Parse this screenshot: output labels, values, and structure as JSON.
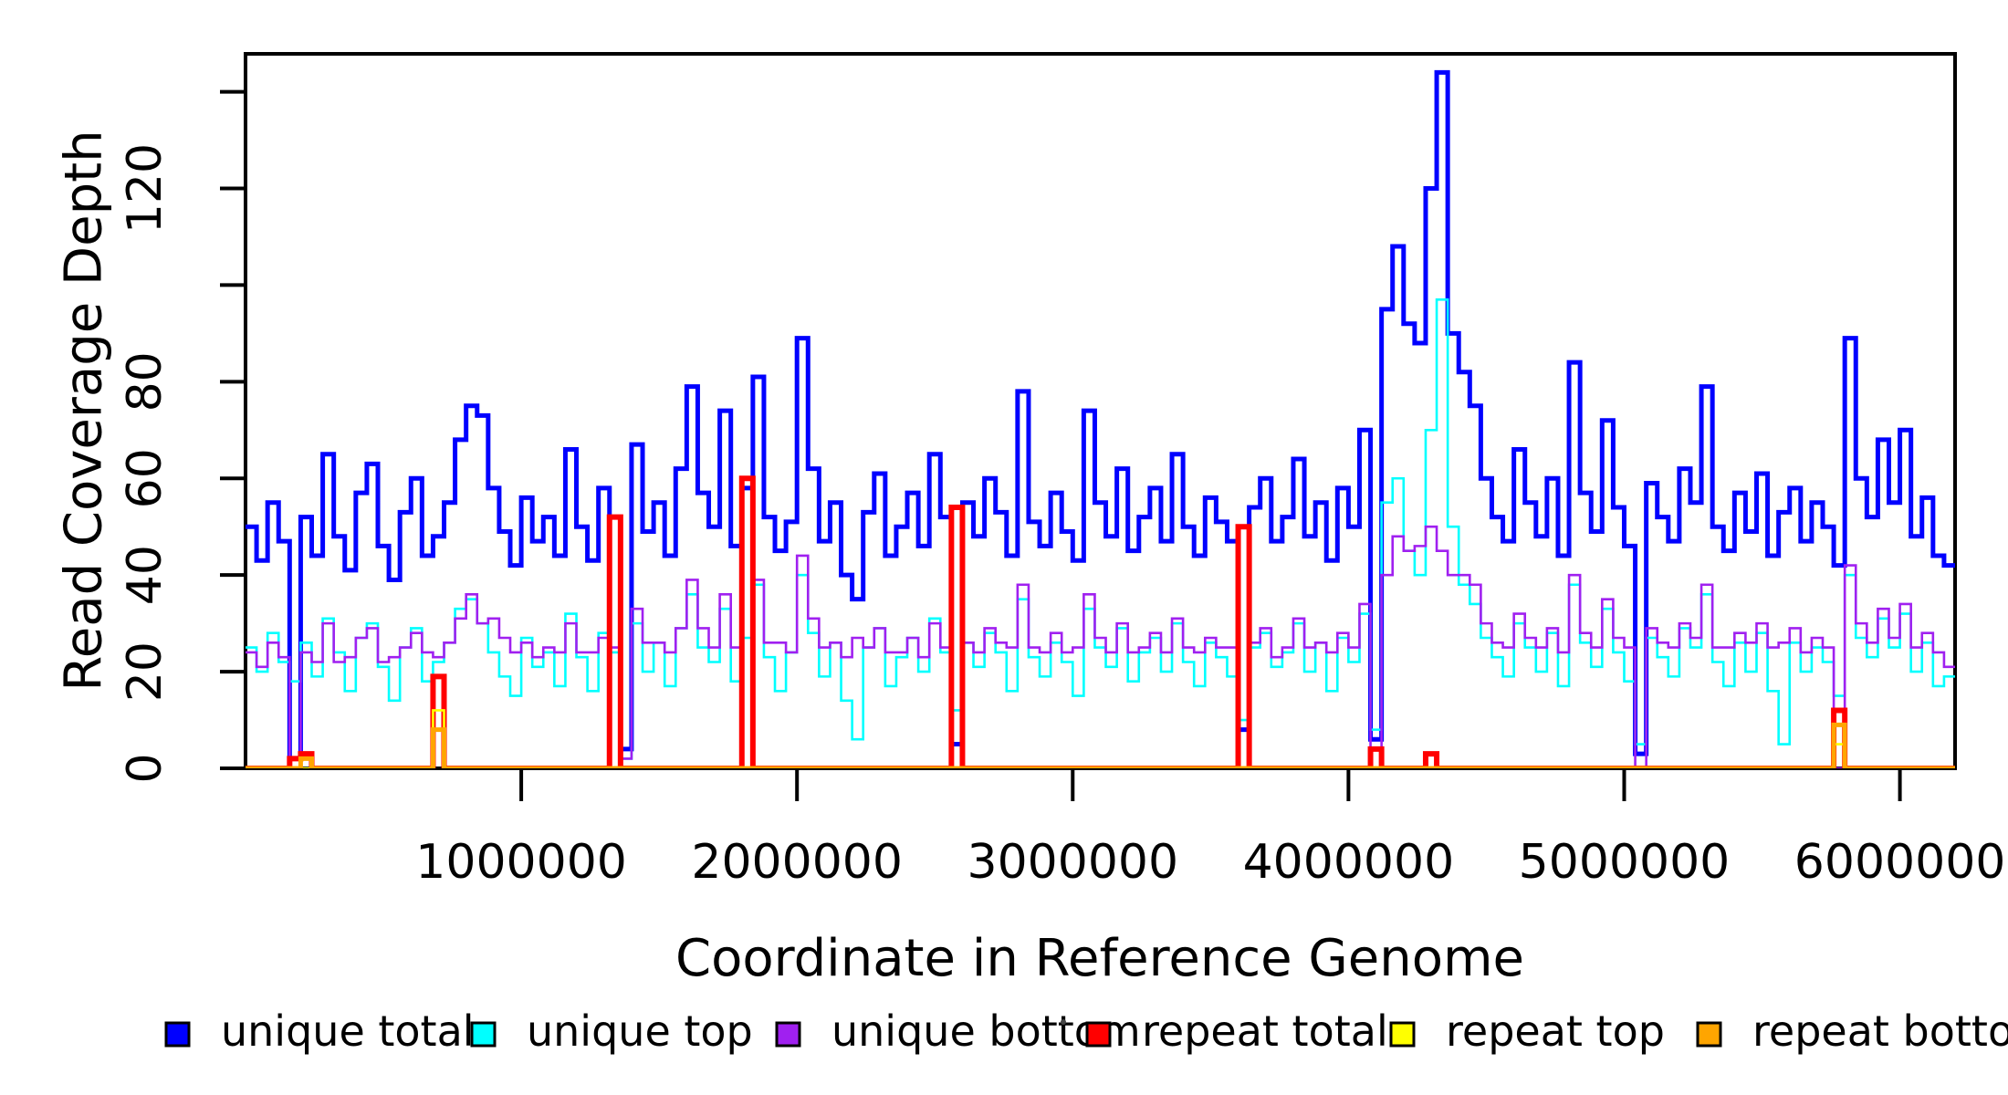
{
  "figure": {
    "background": "#ffffff"
  },
  "x_axis": {
    "title": "Coordinate in Reference Genome",
    "ticks": [
      {
        "value": 1000000,
        "label": "1000000"
      },
      {
        "value": 2000000,
        "label": "2000000"
      },
      {
        "value": 3000000,
        "label": "3000000"
      },
      {
        "value": 4000000,
        "label": "4000000"
      },
      {
        "value": 5000000,
        "label": "5000000"
      },
      {
        "value": 6000000,
        "label": "6000000"
      }
    ]
  },
  "y_axis": {
    "title": "Read Coverage Depth",
    "ticks": [
      {
        "value": 0,
        "label": "0"
      },
      {
        "value": 20,
        "label": "20"
      },
      {
        "value": 40,
        "label": "40"
      },
      {
        "value": 60,
        "label": "60"
      },
      {
        "value": 80,
        "label": "80"
      },
      {
        "value": 100,
        "label": ""
      },
      {
        "value": 120,
        "label": "120"
      },
      {
        "value": 140,
        "label": ""
      }
    ]
  },
  "chart_data": {
    "type": "line",
    "subtype": "step",
    "title": "",
    "xlabel": "Coordinate in Reference Genome",
    "ylabel": "Read Coverage Depth",
    "xlim": [
      0,
      6200000
    ],
    "ylim": [
      0,
      148
    ],
    "grid": false,
    "legend_position": "bottom",
    "bin_size": 40000,
    "series": [
      {
        "name": "unique total",
        "color": "#0000FF",
        "line_width": 5,
        "values": [
          50,
          43,
          55,
          47,
          2,
          52,
          44,
          65,
          48,
          41,
          57,
          63,
          46,
          39,
          53,
          60,
          44,
          48,
          55,
          68,
          75,
          73,
          58,
          49,
          42,
          56,
          47,
          52,
          44,
          66,
          50,
          43,
          58,
          52,
          4,
          67,
          49,
          55,
          44,
          62,
          79,
          57,
          50,
          74,
          46,
          58,
          81,
          52,
          45,
          51,
          89,
          62,
          47,
          55,
          40,
          35,
          53,
          61,
          44,
          50,
          57,
          46,
          65,
          52,
          5,
          55,
          48,
          60,
          53,
          44,
          78,
          51,
          46,
          57,
          49,
          43,
          74,
          55,
          48,
          62,
          45,
          52,
          58,
          47,
          65,
          50,
          44,
          56,
          51,
          47,
          8,
          54,
          60,
          47,
          52,
          64,
          48,
          55,
          43,
          58,
          50,
          70,
          6,
          95,
          108,
          92,
          88,
          120,
          144,
          90,
          82,
          75,
          60,
          52,
          47,
          66,
          55,
          48,
          60,
          44,
          84,
          57,
          49,
          72,
          54,
          46,
          3,
          59,
          52,
          47,
          62,
          55,
          79,
          50,
          45,
          57,
          49,
          61,
          44,
          53,
          58,
          47,
          55,
          50,
          42,
          89,
          60,
          52,
          68,
          55,
          70,
          48,
          56,
          44,
          42
        ]
      },
      {
        "name": "unique top",
        "color": "#00FFFF",
        "line_width": 2.6,
        "values": [
          25,
          20,
          28,
          22,
          18,
          26,
          19,
          31,
          24,
          16,
          27,
          30,
          21,
          14,
          25,
          29,
          18,
          22,
          26,
          33,
          35,
          30,
          24,
          19,
          15,
          27,
          21,
          24,
          17,
          32,
          23,
          16,
          28,
          24,
          2,
          30,
          20,
          26,
          17,
          29,
          36,
          25,
          22,
          33,
          18,
          27,
          38,
          23,
          16,
          24,
          40,
          28,
          19,
          26,
          14,
          6,
          25,
          29,
          17,
          23,
          27,
          20,
          31,
          24,
          12,
          26,
          21,
          28,
          24,
          16,
          35,
          23,
          19,
          26,
          22,
          15,
          33,
          25,
          21,
          29,
          18,
          24,
          27,
          20,
          30,
          22,
          17,
          26,
          23,
          19,
          10,
          25,
          28,
          21,
          24,
          30,
          20,
          26,
          16,
          27,
          22,
          32,
          8,
          55,
          60,
          45,
          40,
          70,
          97,
          50,
          38,
          34,
          27,
          23,
          19,
          30,
          25,
          20,
          28,
          17,
          38,
          26,
          21,
          33,
          24,
          18,
          5,
          27,
          23,
          19,
          29,
          25,
          36,
          22,
          17,
          26,
          20,
          28,
          16,
          5,
          26,
          20,
          25,
          22,
          15,
          40,
          27,
          23,
          31,
          25,
          32,
          20,
          26,
          17,
          19
        ]
      },
      {
        "name": "unique bottom",
        "color": "#A020F0",
        "line_width": 2.6,
        "values": [
          24,
          21,
          26,
          23,
          0,
          24,
          22,
          30,
          22,
          23,
          27,
          29,
          22,
          23,
          25,
          28,
          24,
          23,
          26,
          31,
          36,
          30,
          31,
          27,
          24,
          26,
          23,
          25,
          24,
          30,
          24,
          24,
          27,
          25,
          2,
          33,
          26,
          26,
          24,
          29,
          39,
          29,
          25,
          36,
          25,
          0,
          39,
          26,
          26,
          24,
          44,
          31,
          25,
          26,
          23,
          27,
          25,
          29,
          24,
          24,
          27,
          23,
          30,
          25,
          0,
          26,
          24,
          29,
          26,
          25,
          38,
          25,
          24,
          28,
          24,
          25,
          36,
          27,
          24,
          30,
          24,
          25,
          28,
          24,
          31,
          25,
          24,
          27,
          25,
          25,
          0,
          26,
          29,
          23,
          25,
          31,
          25,
          26,
          24,
          28,
          25,
          34,
          0,
          40,
          48,
          45,
          46,
          50,
          45,
          40,
          40,
          38,
          30,
          26,
          25,
          32,
          27,
          25,
          29,
          24,
          40,
          28,
          25,
          35,
          27,
          25,
          0,
          29,
          26,
          25,
          30,
          27,
          38,
          25,
          25,
          28,
          26,
          30,
          25,
          26,
          29,
          24,
          27,
          25,
          0,
          42,
          30,
          26,
          33,
          27,
          34,
          25,
          28,
          24,
          21
        ]
      },
      {
        "name": "repeat total",
        "color": "#FF0000",
        "line_width": 6,
        "values": [
          0,
          0,
          0,
          0,
          2,
          3,
          0,
          0,
          0,
          0,
          0,
          0,
          0,
          0,
          0,
          0,
          0,
          19,
          0,
          0,
          0,
          0,
          0,
          0,
          0,
          0,
          0,
          0,
          0,
          0,
          0,
          0,
          0,
          52,
          0,
          0,
          0,
          0,
          0,
          0,
          0,
          0,
          0,
          0,
          0,
          60,
          0,
          0,
          0,
          0,
          0,
          0,
          0,
          0,
          0,
          0,
          0,
          0,
          0,
          0,
          0,
          0,
          0,
          0,
          54,
          0,
          0,
          0,
          0,
          0,
          0,
          0,
          0,
          0,
          0,
          0,
          0,
          0,
          0,
          0,
          0,
          0,
          0,
          0,
          0,
          0,
          0,
          0,
          0,
          0,
          50,
          0,
          0,
          0,
          0,
          0,
          0,
          0,
          0,
          0,
          0,
          0,
          4,
          0,
          0,
          0,
          0,
          3,
          0,
          0,
          0,
          0,
          0,
          0,
          0,
          0,
          0,
          0,
          0,
          0,
          0,
          0,
          0,
          0,
          0,
          0,
          0,
          0,
          0,
          0,
          0,
          0,
          0,
          0,
          0,
          0,
          0,
          0,
          0,
          0,
          0,
          0,
          0,
          0,
          12,
          0,
          0,
          0,
          0,
          0,
          0,
          0,
          0,
          0,
          0
        ]
      },
      {
        "name": "repeat top",
        "color": "#FFFF00",
        "line_width": 2.6,
        "values": [
          0,
          0,
          0,
          0,
          0,
          0,
          0,
          0,
          0,
          0,
          0,
          0,
          0,
          0,
          0,
          0,
          0,
          12,
          0,
          0,
          0,
          0,
          0,
          0,
          0,
          0,
          0,
          0,
          0,
          0,
          0,
          0,
          0,
          0,
          0,
          0,
          0,
          0,
          0,
          0,
          0,
          0,
          0,
          0,
          0,
          0,
          0,
          0,
          0,
          0,
          0,
          0,
          0,
          0,
          0,
          0,
          0,
          0,
          0,
          0,
          0,
          0,
          0,
          0,
          0,
          0,
          0,
          0,
          0,
          0,
          0,
          0,
          0,
          0,
          0,
          0,
          0,
          0,
          0,
          0,
          0,
          0,
          0,
          0,
          0,
          0,
          0,
          0,
          0,
          0,
          0,
          0,
          0,
          0,
          0,
          0,
          0,
          0,
          0,
          0,
          0,
          0,
          0,
          0,
          0,
          0,
          0,
          0,
          0,
          0,
          0,
          0,
          0,
          0,
          0,
          0,
          0,
          0,
          0,
          0,
          0,
          0,
          0,
          0,
          0,
          0,
          0,
          0,
          0,
          0,
          0,
          0,
          0,
          0,
          0,
          0,
          0,
          0,
          0,
          0,
          0,
          0,
          0,
          0,
          5,
          0,
          0,
          0,
          0,
          0,
          0,
          0,
          0,
          0,
          0
        ]
      },
      {
        "name": "repeat bottom",
        "color": "#FFA500",
        "line_width": 5,
        "values": [
          0,
          0,
          0,
          0,
          0,
          2,
          0,
          0,
          0,
          0,
          0,
          0,
          0,
          0,
          0,
          0,
          0,
          8,
          0,
          0,
          0,
          0,
          0,
          0,
          0,
          0,
          0,
          0,
          0,
          0,
          0,
          0,
          0,
          0,
          0,
          0,
          0,
          0,
          0,
          0,
          0,
          0,
          0,
          0,
          0,
          0,
          0,
          0,
          0,
          0,
          0,
          0,
          0,
          0,
          0,
          0,
          0,
          0,
          0,
          0,
          0,
          0,
          0,
          0,
          0,
          0,
          0,
          0,
          0,
          0,
          0,
          0,
          0,
          0,
          0,
          0,
          0,
          0,
          0,
          0,
          0,
          0,
          0,
          0,
          0,
          0,
          0,
          0,
          0,
          0,
          0,
          0,
          0,
          0,
          0,
          0,
          0,
          0,
          0,
          0,
          0,
          0,
          0,
          0,
          0,
          0,
          0,
          0,
          0,
          0,
          0,
          0,
          0,
          0,
          0,
          0,
          0,
          0,
          0,
          0,
          0,
          0,
          0,
          0,
          0,
          0,
          0,
          0,
          0,
          0,
          0,
          0,
          0,
          0,
          0,
          0,
          0,
          0,
          0,
          0,
          0,
          0,
          0,
          0,
          9,
          0,
          0,
          0,
          0,
          0,
          0,
          0,
          0,
          0,
          0
        ]
      }
    ]
  }
}
